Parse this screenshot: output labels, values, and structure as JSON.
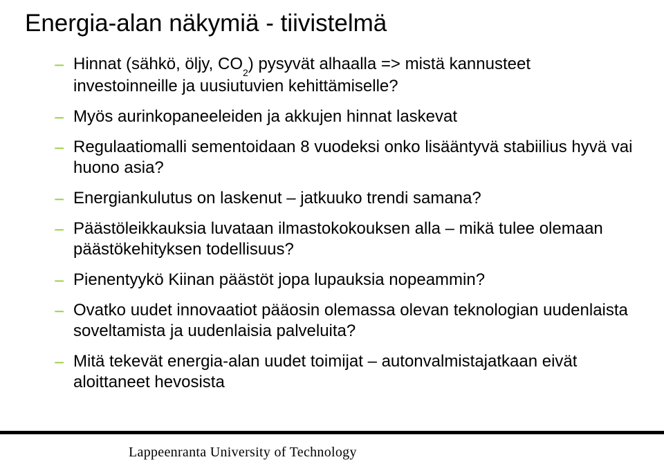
{
  "colors": {
    "background": "#ffffff",
    "text": "#000000",
    "bullet": "#9bca3e",
    "footer_bar": "#000000"
  },
  "typography": {
    "title_fontsize": 35,
    "body_fontsize": 24,
    "footer_fontsize": 20,
    "title_font": "Arial",
    "footer_font": "Georgia"
  },
  "title_parts": {
    "pre": "Energia-alan näkymiä - tiivistelmä"
  },
  "bullets": [
    {
      "pre": "Hinnat (sähkö, öljy, CO",
      "sub": "2",
      "post": ") pysyvät alhaalla => mistä kannusteet investoinneille ja uusiutuvien kehittämiselle?"
    },
    {
      "text": "Myös aurinkopaneeleiden ja akkujen hinnat laskevat"
    },
    {
      "text": "Regulaatiomalli sementoidaan 8 vuodeksi onko lisääntyvä stabiilius hyvä vai huono asia?"
    },
    {
      "text": "Energiankulutus on laskenut – jatkuuko trendi samana?"
    },
    {
      "text": "Päästöleikkauksia luvataan ilmastokokouksen alla – mikä tulee olemaan päästökehityksen todellisuus?"
    },
    {
      "text": "Pienentyykö Kiinan päästöt jopa lupauksia nopeammin?"
    },
    {
      "text": "Ovatko uudet innovaatiot pääosin olemassa olevan teknologian uudenlaista soveltamista ja uudenlaisia palveluita?"
    },
    {
      "text": "Mitä tekevät energia-alan uudet toimijat – autonvalmistajatkaan eivät aloittaneet hevosista"
    }
  ],
  "footer": "Lappeenranta University of Technology"
}
